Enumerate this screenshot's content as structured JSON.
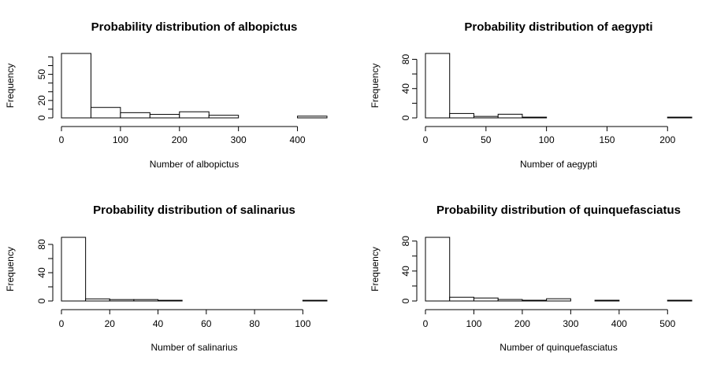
{
  "chart_data": [
    {
      "type": "bar",
      "title": "Probability distribution of albopictus",
      "xlabel": "Number of albopictus",
      "ylabel": "Frequency",
      "bin_edges": [
        0,
        50,
        100,
        150,
        200,
        250,
        300,
        350,
        400,
        450
      ],
      "values": [
        74,
        12,
        6,
        4,
        7,
        3,
        0,
        0,
        2
      ],
      "xlim": [
        0,
        450
      ],
      "ylim": [
        0,
        74
      ],
      "x_ticks": [
        0,
        100,
        200,
        300,
        400
      ],
      "y_ticks": [
        0,
        20,
        50
      ],
      "y_minor_ticks": [
        10,
        30,
        40,
        60,
        70
      ],
      "grid": false
    },
    {
      "type": "bar",
      "title": "Probability distribution of aegypti",
      "xlabel": "Number of aegypti",
      "ylabel": "Frequency",
      "bin_edges": [
        0,
        20,
        40,
        60,
        80,
        100,
        120,
        140,
        160,
        180,
        200,
        220
      ],
      "values": [
        88,
        6,
        2,
        5,
        1,
        0,
        0,
        0,
        0,
        0,
        1
      ],
      "xlim": [
        0,
        220
      ],
      "ylim": [
        0,
        88
      ],
      "x_ticks": [
        0,
        50,
        100,
        150,
        200
      ],
      "y_ticks": [
        0,
        40,
        80
      ],
      "y_minor_ticks": [
        20,
        60
      ],
      "grid": false
    },
    {
      "type": "bar",
      "title": "Probability distribution of salinarius",
      "xlabel": "Number of salinarius",
      "ylabel": "Frequency",
      "bin_edges": [
        0,
        10,
        20,
        30,
        40,
        50,
        60,
        70,
        80,
        90,
        100,
        110
      ],
      "values": [
        90,
        3,
        2,
        2,
        1,
        0,
        0,
        0,
        0,
        0,
        1
      ],
      "xlim": [
        0,
        110
      ],
      "ylim": [
        0,
        90
      ],
      "x_ticks": [
        0,
        20,
        40,
        60,
        80,
        100
      ],
      "y_ticks": [
        0,
        40,
        80
      ],
      "y_minor_ticks": [
        20,
        60
      ],
      "grid": false
    },
    {
      "type": "bar",
      "title": "Probability distribution of quinquefasciatus",
      "xlabel": "Number of quinquefasciatus",
      "ylabel": "Frequency",
      "bin_edges": [
        0,
        50,
        100,
        150,
        200,
        250,
        300,
        350,
        400,
        450,
        500,
        550
      ],
      "values": [
        85,
        5,
        4,
        2,
        1,
        3,
        0,
        1,
        0,
        0,
        1
      ],
      "xlim": [
        0,
        550
      ],
      "ylim": [
        0,
        85
      ],
      "x_ticks": [
        0,
        100,
        200,
        300,
        400,
        500
      ],
      "y_ticks": [
        0,
        40,
        80
      ],
      "y_minor_ticks": [
        20,
        60
      ],
      "grid": false
    }
  ]
}
